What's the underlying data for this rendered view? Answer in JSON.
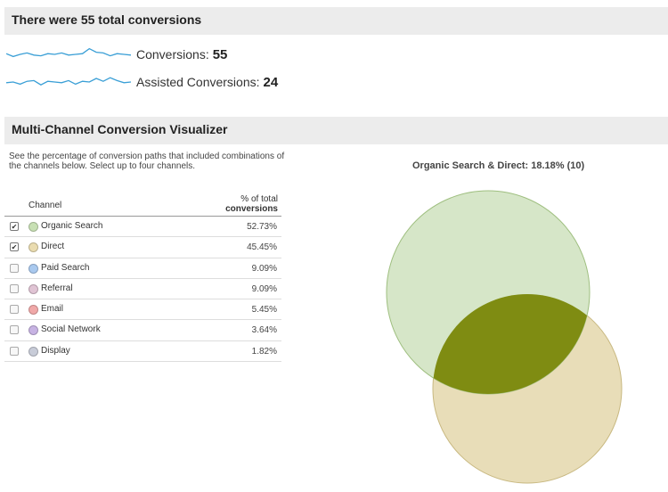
{
  "summary": {
    "title": "There were 55 total conversions",
    "metrics": [
      {
        "label": "Conversions:",
        "value": "55",
        "sparkline": [
          0.55,
          0.35,
          0.5,
          0.6,
          0.45,
          0.4,
          0.55,
          0.5,
          0.6,
          0.45,
          0.5,
          0.55,
          0.9,
          0.65,
          0.6,
          0.4,
          0.55,
          0.5,
          0.45
        ]
      },
      {
        "label": "Assisted Conversions:",
        "value": "24",
        "sparkline": [
          0.45,
          0.5,
          0.35,
          0.55,
          0.6,
          0.3,
          0.55,
          0.5,
          0.45,
          0.6,
          0.35,
          0.55,
          0.5,
          0.75,
          0.55,
          0.8,
          0.6,
          0.45,
          0.5
        ]
      }
    ],
    "sparkline_color": "#3a9fd6"
  },
  "visualizer": {
    "title": "Multi-Channel Conversion Visualizer",
    "description": "See the percentage of conversion paths that included combinations of the channels below. Select up to four channels.",
    "col_channel": "Channel",
    "col_pct_line1": "% of total",
    "col_pct_line2": "conversions",
    "checkmark": "✔",
    "channels": [
      {
        "name": "Organic Search",
        "pct": "52.73%",
        "checked": true,
        "color": "#c8e0b4"
      },
      {
        "name": "Direct",
        "pct": "45.45%",
        "checked": true,
        "color": "#eadcb0"
      },
      {
        "name": "Paid Search",
        "pct": "9.09%",
        "checked": false,
        "color": "#a9c9ef"
      },
      {
        "name": "Referral",
        "pct": "9.09%",
        "checked": false,
        "color": "#e0c4d4"
      },
      {
        "name": "Email",
        "pct": "5.45%",
        "checked": false,
        "color": "#f0a8a8"
      },
      {
        "name": "Social Network",
        "pct": "3.64%",
        "checked": false,
        "color": "#c7b3e3"
      },
      {
        "name": "Display",
        "pct": "1.82%",
        "checked": false,
        "color": "#c8ccd8"
      }
    ],
    "venn_title": "Organic Search & Direct: 18.18% (10)",
    "venn_colors": {
      "organic_fill": "#d6e6c8",
      "organic_stroke": "#9fbf80",
      "direct_fill": "#e8ddb8",
      "direct_stroke": "#c8b880",
      "overlap_fill": "#7f8c12"
    }
  }
}
